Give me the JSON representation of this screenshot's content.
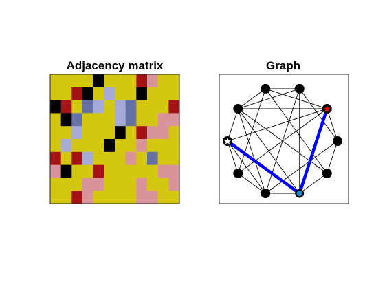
{
  "chart_data": [
    {
      "type": "heatmap",
      "title": "Adjacency matrix",
      "palette": {
        "0": "#d4c80f",
        "1": "#a51414",
        "2": "#000000",
        "3": "#6570a5",
        "4": "#a5aad8",
        "5": "#d9939a"
      },
      "matrix": [
        [
          0,
          0,
          0,
          0,
          2,
          0,
          0,
          0,
          1,
          5,
          0,
          0
        ],
        [
          0,
          0,
          1,
          2,
          0,
          4,
          0,
          0,
          2,
          0,
          0,
          0
        ],
        [
          2,
          1,
          0,
          3,
          4,
          0,
          4,
          3,
          0,
          0,
          0,
          1
        ],
        [
          0,
          2,
          3,
          0,
          0,
          0,
          4,
          3,
          0,
          0,
          5,
          5
        ],
        [
          0,
          0,
          4,
          0,
          0,
          0,
          2,
          0,
          1,
          5,
          5,
          0
        ],
        [
          0,
          4,
          0,
          0,
          0,
          2,
          0,
          0,
          5,
          0,
          0,
          0
        ],
        [
          1,
          0,
          1,
          4,
          0,
          0,
          0,
          5,
          0,
          3,
          0,
          0
        ],
        [
          5,
          2,
          0,
          0,
          1,
          0,
          0,
          0,
          0,
          0,
          5,
          5
        ],
        [
          0,
          0,
          0,
          5,
          5,
          0,
          0,
          0,
          5,
          0,
          0,
          5
        ],
        [
          0,
          0,
          1,
          5,
          0,
          0,
          0,
          0,
          5,
          5,
          0,
          0
        ]
      ]
    },
    {
      "type": "network",
      "title": "Graph",
      "nodes": [
        {
          "id": 0,
          "angle": 72,
          "marker": "dot"
        },
        {
          "id": 1,
          "angle": 108,
          "marker": "dot"
        },
        {
          "id": 2,
          "angle": 144,
          "marker": "dot"
        },
        {
          "id": 3,
          "angle": 180,
          "marker": "start"
        },
        {
          "id": 4,
          "angle": 216,
          "marker": "dot"
        },
        {
          "id": 5,
          "angle": 252,
          "marker": "dot"
        },
        {
          "id": 6,
          "angle": 288,
          "marker": "current"
        },
        {
          "id": 7,
          "angle": 324,
          "marker": "dot"
        },
        {
          "id": 8,
          "angle": 0,
          "marker": "dot"
        },
        {
          "id": 9,
          "angle": 36,
          "marker": "goal"
        }
      ],
      "edges": [
        [
          0,
          1
        ],
        [
          0,
          2
        ],
        [
          0,
          5
        ],
        [
          0,
          6
        ],
        [
          0,
          8
        ],
        [
          1,
          2
        ],
        [
          1,
          9
        ],
        [
          1,
          7
        ],
        [
          1,
          4
        ],
        [
          2,
          9
        ],
        [
          2,
          3
        ],
        [
          2,
          5
        ],
        [
          2,
          6
        ],
        [
          3,
          4
        ],
        [
          3,
          5
        ],
        [
          3,
          9
        ],
        [
          4,
          5
        ],
        [
          4,
          9
        ],
        [
          5,
          6
        ],
        [
          5,
          8
        ],
        [
          6,
          7
        ],
        [
          6,
          9
        ],
        [
          7,
          8
        ],
        [
          7,
          2
        ],
        [
          8,
          9
        ]
      ],
      "path": [
        3,
        6,
        9
      ],
      "colors": {
        "node": "#000000",
        "edge": "#000000",
        "path": "#0000ff",
        "goal_star": "#ff0000",
        "current_fill": "#1e88c8",
        "start_star": "#ffffff"
      }
    }
  ]
}
